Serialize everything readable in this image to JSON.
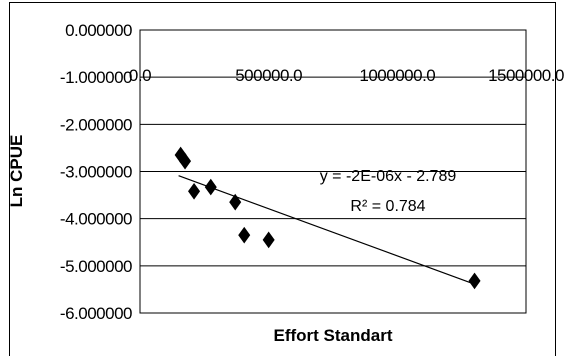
{
  "chart_data": {
    "type": "scatter",
    "title": "",
    "xlabel": "Effort Standart",
    "ylabel": "Ln CPUE",
    "xlim": [
      0,
      1500000
    ],
    "ylim": [
      -6,
      0
    ],
    "x_ticks": [
      0,
      500000,
      1000000,
      1500000
    ],
    "x_tick_labels": [
      "0.0",
      "500000.0",
      "1000000.0",
      "1500000.0"
    ],
    "y_ticks": [
      0,
      -1,
      -2,
      -3,
      -4,
      -5,
      -6
    ],
    "y_tick_labels": [
      "0.000000",
      "-1.000000",
      "-2.000000",
      "-3.000000",
      "-4.000000",
      "-5.000000",
      "-6.000000"
    ],
    "x_axis_position": "top",
    "grid": "horizontal",
    "legend": "none",
    "marker": "diamond",
    "marker_color": "#000000",
    "series": [
      {
        "x": [
          158000,
          175000,
          210000,
          275000,
          370000,
          405000,
          500000,
          1300000
        ],
        "y": [
          -2.65,
          -2.78,
          -3.42,
          -3.33,
          -3.65,
          -4.35,
          -4.45,
          -5.32
        ]
      }
    ],
    "trendline": {
      "type": "linear",
      "slope": -2e-06,
      "intercept": -2.789,
      "x_range": [
        150000,
        1300000
      ]
    },
    "annotations": {
      "equation": "y = -2E-06x - 2.789",
      "r_squared": "R² = 0.784"
    }
  }
}
